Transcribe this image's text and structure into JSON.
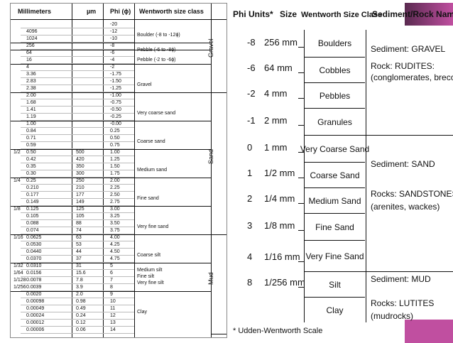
{
  "colors": {
    "frame": "#e0e0e0",
    "right_accent": "#c04fa0",
    "right_accent_dark": "#402040",
    "line": "#111111"
  },
  "left_table": {
    "headers": [
      "Millimeters",
      "µm",
      "Phi (ϕ)",
      "Wentworth size class"
    ],
    "rows": [
      {
        "frac": "",
        "mm": "",
        "um": "",
        "phi": "-20"
      },
      {
        "frac": "",
        "mm": "4096",
        "um": "",
        "phi": "-12"
      },
      {
        "frac": "",
        "mm": "1024",
        "um": "",
        "phi": "-10"
      },
      {
        "frac": "",
        "mm": "256",
        "um": "",
        "phi": "-8"
      },
      {
        "frac": "",
        "mm": "64",
        "um": "",
        "phi": "-6"
      },
      {
        "frac": "",
        "mm": "16",
        "um": "",
        "phi": "-4"
      },
      {
        "frac": "",
        "mm": "4",
        "um": "",
        "phi": "-2"
      },
      {
        "frac": "",
        "mm": "3.36",
        "um": "",
        "phi": "-1.75"
      },
      {
        "frac": "",
        "mm": "2.83",
        "um": "",
        "phi": "-1.50"
      },
      {
        "frac": "",
        "mm": "2.38",
        "um": "",
        "phi": "-1.25"
      },
      {
        "frac": "",
        "mm": "2.00",
        "um": "",
        "phi": "-1.00"
      },
      {
        "frac": "",
        "mm": "1.68",
        "um": "",
        "phi": "-0.75"
      },
      {
        "frac": "",
        "mm": "1.41",
        "um": "",
        "phi": "-0.50"
      },
      {
        "frac": "",
        "mm": "1.19",
        "um": "",
        "phi": "-0.25"
      },
      {
        "frac": "",
        "mm": "1.00",
        "um": "",
        "phi": "-0.00"
      },
      {
        "frac": "",
        "mm": "0.84",
        "um": "",
        "phi": "0.25"
      },
      {
        "frac": "",
        "mm": "0.71",
        "um": "",
        "phi": "0.50"
      },
      {
        "frac": "",
        "mm": "0.59",
        "um": "",
        "phi": "0.75"
      },
      {
        "frac": "1/2",
        "mm": "0.50",
        "um": "500",
        "phi": "1.00"
      },
      {
        "frac": "",
        "mm": "0.42",
        "um": "420",
        "phi": "1.25"
      },
      {
        "frac": "",
        "mm": "0.35",
        "um": "350",
        "phi": "1.50"
      },
      {
        "frac": "",
        "mm": "0.30",
        "um": "300",
        "phi": "1.75"
      },
      {
        "frac": "1/4",
        "mm": "0.25",
        "um": "250",
        "phi": "2.00"
      },
      {
        "frac": "",
        "mm": "0.210",
        "um": "210",
        "phi": "2.25"
      },
      {
        "frac": "",
        "mm": "0.177",
        "um": "177",
        "phi": "2.50"
      },
      {
        "frac": "",
        "mm": "0.149",
        "um": "149",
        "phi": "2.75"
      },
      {
        "frac": "1/8",
        "mm": "0.125",
        "um": "125",
        "phi": "3.00"
      },
      {
        "frac": "",
        "mm": "0.105",
        "um": "105",
        "phi": "3.25"
      },
      {
        "frac": "",
        "mm": "0.088",
        "um": "88",
        "phi": "3.50"
      },
      {
        "frac": "",
        "mm": "0.074",
        "um": "74",
        "phi": "3.75"
      },
      {
        "frac": "1/16",
        "mm": "0.0625",
        "um": "63",
        "phi": "4.00"
      },
      {
        "frac": "",
        "mm": "0.0530",
        "um": "53",
        "phi": "4.25"
      },
      {
        "frac": "",
        "mm": "0.0440",
        "um": "44",
        "phi": "4.50"
      },
      {
        "frac": "",
        "mm": "0.0370",
        "um": "37",
        "phi": "4.75"
      },
      {
        "frac": "1/32",
        "mm": "0.0310",
        "um": "31",
        "phi": "5"
      },
      {
        "frac": "1/64",
        "mm": "0.0156",
        "um": "15.6",
        "phi": "6"
      },
      {
        "frac": "1/128",
        "mm": "0.0078",
        "um": "7.8",
        "phi": "7"
      },
      {
        "frac": "1/256",
        "mm": "0.0039",
        "um": "3.9",
        "phi": "8"
      },
      {
        "frac": "",
        "mm": "0.0020",
        "um": "2.0",
        "phi": "9"
      },
      {
        "frac": "",
        "mm": "0.00098",
        "um": "0.98",
        "phi": "10"
      },
      {
        "frac": "",
        "mm": "0.00049",
        "um": "0.49",
        "phi": "11"
      },
      {
        "frac": "",
        "mm": "0.00024",
        "um": "0.24",
        "phi": "12"
      },
      {
        "frac": "",
        "mm": "0.00012",
        "um": "0.12",
        "phi": "13"
      },
      {
        "frac": "",
        "mm": "0.00006",
        "um": "0.06",
        "phi": "14"
      }
    ],
    "classes": [
      {
        "text": "Boulder (-8 to -12ϕ)",
        "row": 1.5
      },
      {
        "text": "Pebble (-6 to -8ϕ)",
        "row": 3.6
      },
      {
        "text": "Pebble (-2 to -6ϕ)",
        "row": 5.0
      },
      {
        "text": "Gravel",
        "row": 8.5
      },
      {
        "text": "Very coarse sand",
        "row": 12.5
      },
      {
        "text": "Coarse sand",
        "row": 16.5
      },
      {
        "text": "Medium sand",
        "row": 20.5
      },
      {
        "text": "Fine sand",
        "row": 24.5
      },
      {
        "text": "Very fine sand",
        "row": 28.5
      },
      {
        "text": "Coarse silt",
        "row": 32.5
      },
      {
        "text": "Medium silt",
        "row": 34.6
      },
      {
        "text": "Fine silt",
        "row": 35.5
      },
      {
        "text": "Very fine silt",
        "row": 36.4
      },
      {
        "text": "Clay",
        "row": 40.5
      }
    ],
    "groups": [
      {
        "text": "Gravel",
        "row_start": 0,
        "row_end": 10
      },
      {
        "text": "Sand",
        "row_start": 10,
        "row_end": 30
      },
      {
        "text": "Mud",
        "row_start": 30,
        "row_end": 44
      }
    ]
  },
  "right_table": {
    "headers": {
      "phi": "Phi Units*",
      "size": "Size",
      "wentworth": "Wentworth Size Class",
      "sediment": "Sediment/Rock Name"
    },
    "rows": [
      {
        "phi": "-8",
        "size": "256 mm"
      },
      {
        "phi": "-6",
        "size": "64 mm"
      },
      {
        "phi": "-2",
        "size": "4 mm"
      },
      {
        "phi": "-1",
        "size": "2 mm"
      },
      {
        "phi": "0",
        "size": "1 mm"
      },
      {
        "phi": "1",
        "size": "1/2 mm"
      },
      {
        "phi": "2",
        "size": "1/4 mm"
      },
      {
        "phi": "3",
        "size": "1/8 mm"
      },
      {
        "phi": "4",
        "size": "1/16 mm"
      },
      {
        "phi": "8",
        "size": "1/256 mm"
      }
    ],
    "classes": [
      "Boulders",
      "Cobbles",
      "Pebbles",
      "Granules",
      "Very Coarse Sand",
      "Coarse Sand",
      "Medium Sand",
      "Fine Sand",
      "Very Fine Sand",
      "Silt",
      "Clay"
    ],
    "sediments": [
      {
        "sediment": "Sediment: GRAVEL",
        "rock1": "Rock: RUDITES:",
        "rock2": "(conglomerates, breccias)"
      },
      {
        "sediment": "Sediment: SAND",
        "rock1": "Rocks: SANDSTONES",
        "rock2": "(arenites, wackes)"
      },
      {
        "sediment": "Sediment: MUD",
        "rock1": "Rocks: LUTITES",
        "rock2": "(mudrocks)"
      }
    ],
    "footnote": "* Udden-Wentworth Scale"
  }
}
